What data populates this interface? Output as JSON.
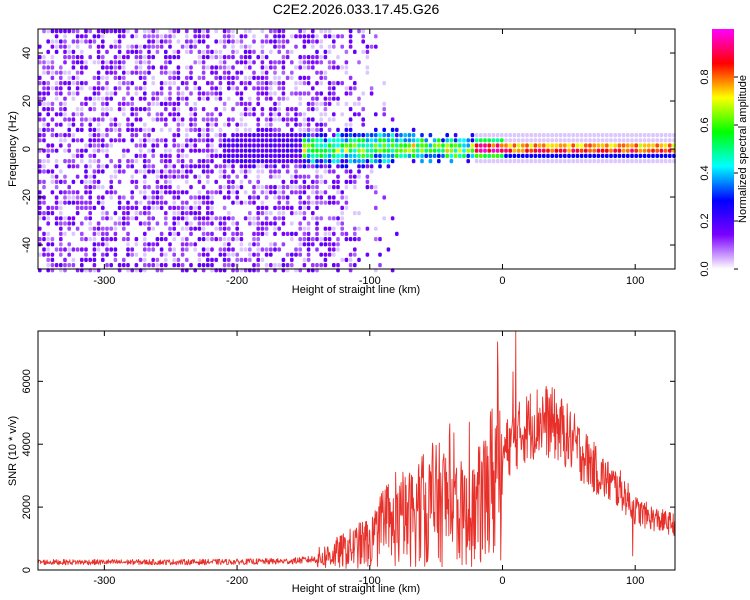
{
  "chart_data": [
    {
      "type": "heatmap",
      "title": "C2E2.2026.033.17.45.G26",
      "xlabel": "Height of straight line (km)",
      "ylabel": "Frequency (Hz)",
      "xlim": [
        -350,
        130
      ],
      "ylim": [
        -50,
        50
      ],
      "xticks": [
        -300,
        -200,
        -100,
        0,
        100
      ],
      "yticks": [
        -40,
        -20,
        0,
        20,
        40
      ],
      "grid": false,
      "description_values": {
        "noise_floor_region_km": [
          -350,
          -75
        ],
        "signal_onset_km": -150,
        "signal_center_hz": 0,
        "peak_amplitude_region_km": [
          -20,
          130
        ]
      },
      "colorbar": {
        "label": "Normalized spectral amplitude",
        "min": 0.0,
        "max": 1.0,
        "ticks": [
          0.0,
          0.2,
          0.4,
          0.6,
          0.8
        ],
        "colormap": [
          "#ffffff",
          "#7a00ff",
          "#0000ff",
          "#00ffff",
          "#00ff00",
          "#ffff00",
          "#ff0000",
          "#ff00ff"
        ]
      }
    },
    {
      "type": "line",
      "xlabel": "Height of straight line (km)",
      "ylabel": "SNR (10 * v/v)",
      "xlim": [
        -350,
        130
      ],
      "ylim": [
        0,
        7600
      ],
      "xticks": [
        -300,
        -200,
        -100,
        0,
        100
      ],
      "yticks": [
        0,
        2000,
        4000,
        6000
      ],
      "grid": false,
      "series": [
        {
          "name": "SNR",
          "color": "#e8302a",
          "x": [
            -350,
            -300,
            -250,
            -200,
            -160,
            -140,
            -120,
            -100,
            -80,
            -60,
            -40,
            -25,
            -10,
            0,
            10,
            20,
            30,
            40,
            50,
            60,
            70,
            80,
            90,
            100,
            110,
            120,
            130
          ],
          "values": [
            250,
            250,
            250,
            260,
            280,
            350,
            600,
            900,
            1400,
            1900,
            2200,
            1500,
            2600,
            3700,
            4200,
            4600,
            4800,
            4600,
            4200,
            3700,
            3200,
            2800,
            2500,
            1900,
            1700,
            1550,
            1450
          ],
          "spikes": [
            {
              "x": 10,
              "value": 7600
            },
            {
              "x": 8,
              "value": 6300
            },
            {
              "x": 98,
              "value": 450
            },
            {
              "x": -25,
              "value": 4700
            }
          ]
        }
      ]
    }
  ]
}
